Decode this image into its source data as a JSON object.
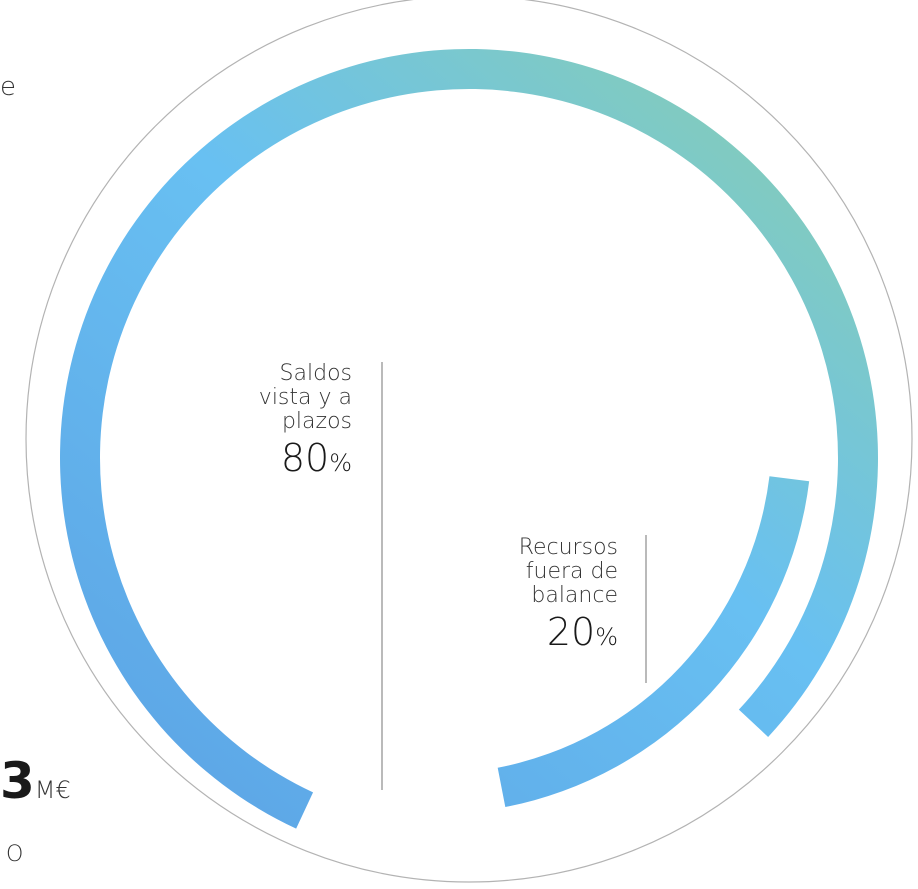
{
  "fragments": {
    "top_left": "e",
    "bottom_big": "3",
    "bottom_unit": "M€",
    "bottom_small": "O"
  },
  "colors": {
    "gradient_teal": "#86cdb6",
    "gradient_sky": "#68c0f2",
    "gradient_blue": "#5da6e6",
    "outline": "#b3b3b3",
    "divider": "#8c8c8c"
  },
  "chart_data": {
    "type": "pie",
    "style": "donut",
    "title": "",
    "segments": [
      {
        "label_lines": [
          "Saldos",
          "vista y a",
          "plazos"
        ],
        "value": 80,
        "display_value": "80",
        "unit": "%"
      },
      {
        "label_lines": [
          "Recursos",
          "fuera de",
          "balance"
        ],
        "value": 20,
        "display_value": "20",
        "unit": "%"
      }
    ]
  }
}
